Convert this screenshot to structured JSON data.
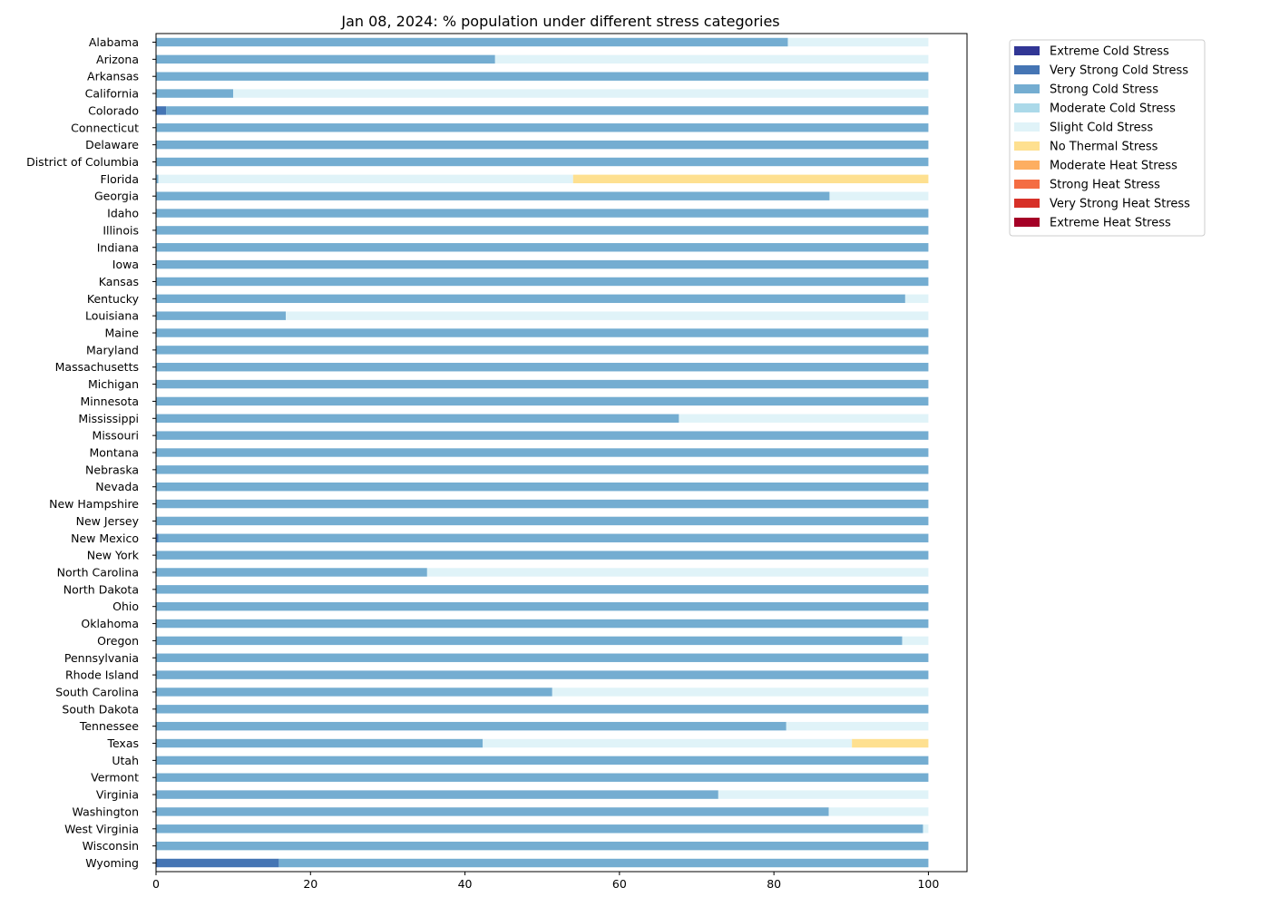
{
  "chart_data": {
    "type": "bar",
    "orientation": "horizontal",
    "stacked": true,
    "title": "Jan 08, 2024: % population under different stress categories",
    "xlim": [
      0,
      105
    ],
    "xticks": [
      0,
      20,
      40,
      60,
      80,
      100
    ],
    "grid": false,
    "legend_position": "outside-top-right",
    "categories": [
      "Alabama",
      "Arizona",
      "Arkansas",
      "California",
      "Colorado",
      "Connecticut",
      "Delaware",
      "District of Columbia",
      "Florida",
      "Georgia",
      "Idaho",
      "Illinois",
      "Indiana",
      "Iowa",
      "Kansas",
      "Kentucky",
      "Louisiana",
      "Maine",
      "Maryland",
      "Massachusetts",
      "Michigan",
      "Minnesota",
      "Mississippi",
      "Missouri",
      "Montana",
      "Nebraska",
      "Nevada",
      "New Hampshire",
      "New Jersey",
      "New Mexico",
      "New York",
      "North Carolina",
      "North Dakota",
      "Ohio",
      "Oklahoma",
      "Oregon",
      "Pennsylvania",
      "Rhode Island",
      "South Carolina",
      "South Dakota",
      "Tennessee",
      "Texas",
      "Utah",
      "Vermont",
      "Virginia",
      "Washington",
      "West Virginia",
      "Wisconsin",
      "Wyoming"
    ],
    "series": [
      {
        "name": "Extreme Cold Stress",
        "color": "#313695",
        "values": [
          0,
          0,
          0,
          0,
          0,
          0,
          0,
          0,
          0,
          0,
          0,
          0,
          0,
          0,
          0,
          0,
          0,
          0,
          0,
          0,
          0,
          0,
          0,
          0,
          0,
          0,
          0,
          0,
          0,
          0,
          0,
          0,
          0,
          0,
          0,
          0,
          0,
          0,
          0,
          0,
          0,
          0,
          0,
          0,
          0,
          0,
          0,
          0,
          0
        ]
      },
      {
        "name": "Very Strong Cold Stress",
        "color": "#4575b4",
        "values": [
          0,
          0,
          0,
          0,
          1.3,
          0,
          0,
          0,
          0,
          0,
          0,
          0,
          0,
          0,
          0,
          0,
          0,
          0,
          0,
          0,
          0,
          0,
          0,
          0,
          0,
          0,
          0,
          0,
          0,
          0.3,
          0,
          0,
          0,
          0,
          0,
          0,
          0,
          0,
          0,
          0,
          0,
          0,
          0,
          0,
          0,
          0,
          0,
          0,
          15.9
        ]
      },
      {
        "name": "Strong Cold Stress",
        "color": "#74add1",
        "values": [
          81.8,
          43.9,
          100,
          10,
          98.7,
          100,
          100,
          100,
          0.3,
          87.2,
          100,
          100,
          100,
          100,
          100,
          97,
          16.8,
          100,
          100,
          100,
          100,
          100,
          67.7,
          100,
          100,
          100,
          100,
          100,
          100,
          99.7,
          100,
          35.1,
          100,
          100,
          100,
          96.6,
          100,
          100,
          51.3,
          100,
          81.6,
          42.3,
          100,
          100,
          72.8,
          87.1,
          99.3,
          100,
          84.1
        ]
      },
      {
        "name": "Moderate Cold Stress",
        "color": "#abd9e9",
        "values": [
          0,
          0,
          0,
          0,
          0,
          0,
          0,
          0,
          0,
          0,
          0,
          0,
          0,
          0,
          0,
          0,
          0,
          0,
          0,
          0,
          0,
          0,
          0,
          0,
          0,
          0,
          0,
          0,
          0,
          0,
          0,
          0,
          0,
          0,
          0,
          0,
          0,
          0,
          0,
          0,
          0,
          0,
          0,
          0,
          0,
          0,
          0,
          0,
          0
        ]
      },
      {
        "name": "Slight Cold Stress",
        "color": "#e0f3f8",
        "values": [
          18.2,
          56.1,
          0,
          90,
          0,
          0,
          0,
          0,
          53.7,
          12.8,
          0,
          0,
          0,
          0,
          0,
          3,
          83.2,
          0,
          0,
          0,
          0,
          0,
          32.3,
          0,
          0,
          0,
          0,
          0,
          0,
          0,
          0,
          64.9,
          0,
          0,
          0,
          3.4,
          0,
          0,
          48.7,
          0,
          18.4,
          47.8,
          0,
          0,
          27.2,
          12.9,
          0.7,
          0,
          0
        ]
      },
      {
        "name": "No Thermal Stress",
        "color": "#fee090",
        "values": [
          0,
          0,
          0,
          0,
          0,
          0,
          0,
          0,
          46,
          0,
          0,
          0,
          0,
          0,
          0,
          0,
          0,
          0,
          0,
          0,
          0,
          0,
          0,
          0,
          0,
          0,
          0,
          0,
          0,
          0,
          0,
          0,
          0,
          0,
          0,
          0,
          0,
          0,
          0,
          0,
          0,
          9.9,
          0,
          0,
          0,
          0,
          0,
          0,
          0
        ]
      },
      {
        "name": "Moderate Heat Stress",
        "color": "#fdae61",
        "values": [
          0,
          0,
          0,
          0,
          0,
          0,
          0,
          0,
          0,
          0,
          0,
          0,
          0,
          0,
          0,
          0,
          0,
          0,
          0,
          0,
          0,
          0,
          0,
          0,
          0,
          0,
          0,
          0,
          0,
          0,
          0,
          0,
          0,
          0,
          0,
          0,
          0,
          0,
          0,
          0,
          0,
          0,
          0,
          0,
          0,
          0,
          0,
          0,
          0
        ]
      },
      {
        "name": "Strong Heat Stress",
        "color": "#f46d43",
        "values": [
          0,
          0,
          0,
          0,
          0,
          0,
          0,
          0,
          0,
          0,
          0,
          0,
          0,
          0,
          0,
          0,
          0,
          0,
          0,
          0,
          0,
          0,
          0,
          0,
          0,
          0,
          0,
          0,
          0,
          0,
          0,
          0,
          0,
          0,
          0,
          0,
          0,
          0,
          0,
          0,
          0,
          0,
          0,
          0,
          0,
          0,
          0,
          0,
          0
        ]
      },
      {
        "name": "Very Strong Heat Stress",
        "color": "#d73027",
        "values": [
          0,
          0,
          0,
          0,
          0,
          0,
          0,
          0,
          0,
          0,
          0,
          0,
          0,
          0,
          0,
          0,
          0,
          0,
          0,
          0,
          0,
          0,
          0,
          0,
          0,
          0,
          0,
          0,
          0,
          0,
          0,
          0,
          0,
          0,
          0,
          0,
          0,
          0,
          0,
          0,
          0,
          0,
          0,
          0,
          0,
          0,
          0,
          0,
          0
        ]
      },
      {
        "name": "Extreme Heat Stress",
        "color": "#a50026",
        "values": [
          0,
          0,
          0,
          0,
          0,
          0,
          0,
          0,
          0,
          0,
          0,
          0,
          0,
          0,
          0,
          0,
          0,
          0,
          0,
          0,
          0,
          0,
          0,
          0,
          0,
          0,
          0,
          0,
          0,
          0,
          0,
          0,
          0,
          0,
          0,
          0,
          0,
          0,
          0,
          0,
          0,
          0,
          0,
          0,
          0,
          0,
          0,
          0,
          0
        ]
      }
    ]
  }
}
